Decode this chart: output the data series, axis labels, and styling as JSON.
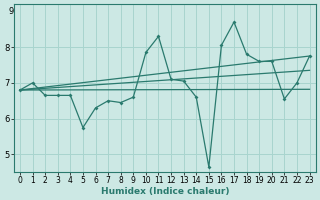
{
  "title": "",
  "xlabel": "Humidex (Indice chaleur)",
  "x": [
    0,
    1,
    2,
    3,
    4,
    5,
    6,
    7,
    8,
    9,
    10,
    11,
    12,
    13,
    14,
    15,
    16,
    17,
    18,
    19,
    20,
    21,
    22,
    23
  ],
  "y_main": [
    6.8,
    7.0,
    6.65,
    6.65,
    6.65,
    5.75,
    6.3,
    6.5,
    6.45,
    6.6,
    7.85,
    8.3,
    7.1,
    7.05,
    6.6,
    4.65,
    8.05,
    8.7,
    7.8,
    7.6,
    7.6,
    6.55,
    7.0,
    7.75
  ],
  "trend1_x": [
    0,
    23
  ],
  "trend1_y": [
    6.8,
    7.75
  ],
  "trend2_x": [
    0,
    23
  ],
  "trend2_y": [
    6.8,
    7.35
  ],
  "trend3_x": [
    0,
    23
  ],
  "trend3_y": [
    6.8,
    6.82
  ],
  "bg_color": "#cce8e4",
  "grid_color": "#a8d4ce",
  "line_color": "#2a7a6e",
  "ylim": [
    4.5,
    9.2
  ],
  "xlim": [
    -0.5,
    23.5
  ],
  "yticks": [
    5,
    6,
    7,
    8
  ],
  "xticks": [
    0,
    1,
    2,
    3,
    4,
    5,
    6,
    7,
    8,
    9,
    10,
    11,
    12,
    13,
    14,
    15,
    16,
    17,
    18,
    19,
    20,
    21,
    22,
    23
  ],
  "ytick_top": "9"
}
